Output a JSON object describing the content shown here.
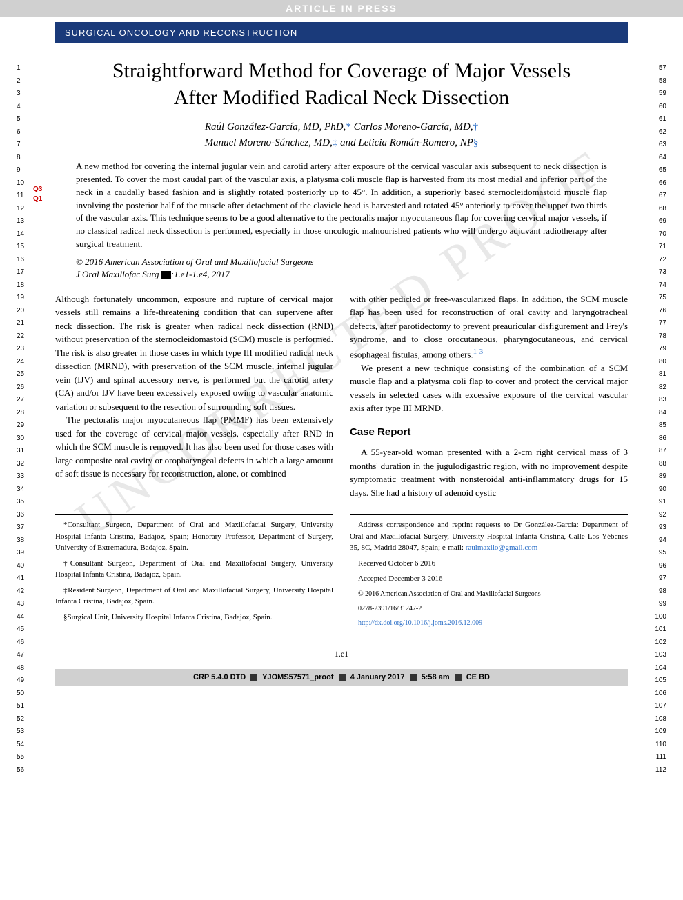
{
  "banners": {
    "top": "ARTICLE IN PRESS",
    "section": "SURGICAL ONCOLOGY AND RECONSTRUCTION"
  },
  "watermark": "UNCORRECTED PROOF",
  "line_numbers": {
    "left_start": 1,
    "left_end": 56,
    "right_start": 57,
    "right_end": 112
  },
  "q_markers": [
    "Q3",
    "Q1"
  ],
  "title": "Straightforward Method for Coverage of Major Vessels After Modified Radical Neck Dissection",
  "authors": {
    "line1_a": "Raúl González-García, MD, PhD,",
    "line1_sym_a": "*",
    "line1_b": " Carlos Moreno-García, MD,",
    "line1_sym_b": "†",
    "line2_a": "Manuel Moreno-Sánchez, MD,",
    "line2_sym_a": "‡",
    "line2_b": " and Leticia Román-Romero, NP",
    "line2_sym_b": "§"
  },
  "abstract": "A new method for covering the internal jugular vein and carotid artery after exposure of the cervical vascular axis subsequent to neck dissection is presented. To cover the most caudal part of the vascular axis, a platysma coli muscle flap is harvested from its most medial and inferior part of the neck in a caudally based fashion and is slightly rotated posteriorly up to 45°. In addition, a superiorly based sternocleidomastoid muscle flap involving the posterior half of the muscle after detachment of the clavicle head is harvested and rotated 45° anteriorly to cover the upper two thirds of the vascular axis. This technique seems to be a good alternative to the pectoralis major myocutaneous flap for covering cervical major vessels, if no classical radical neck dissection is performed, especially in those oncologic malnourished patients who will undergo adjuvant radiotherapy after surgical treatment.",
  "copyright": "© 2016 American Association of Oral and Maxillofacial Surgeons",
  "citation_prefix": "J Oral Maxillofac Surg ",
  "citation_suffix": ":1.e1-1.e4, 2017",
  "body": {
    "left": {
      "p1": "Although fortunately uncommon, exposure and rupture of cervical major vessels still remains a life-threatening condition that can supervene after neck dissection. The risk is greater when radical neck dissection (RND) without preservation of the sternocleidomastoid (SCM) muscle is performed. The risk is also greater in those cases in which type III modified radical neck dissection (MRND), with preservation of the SCM muscle, internal jugular vein (IJV) and spinal accessory nerve, is performed but the carotid artery (CA) and/or IJV have been excessively exposed owing to vascular anatomic variation or subsequent to the resection of surrounding soft tissues.",
      "p2": "The pectoralis major myocutaneous flap (PMMF) has been extensively used for the coverage of cervical major vessels, especially after RND in which the SCM muscle is removed. It has also been used for those cases with large composite oral cavity or oropharyngeal defects in which a large amount of soft tissue is necessary for reconstruction, alone, or combined"
    },
    "right": {
      "p1a": "with other pedicled or free-vascularized flaps. In addition, the SCM muscle flap has been used for reconstruction of oral cavity and laryngotracheal defects, after parotidectomy to prevent preauricular disfigurement and Frey's syndrome, and to close orocutaneous, pharyngocutaneous, and cervical esophageal fistulas, among others.",
      "ref1": "1-3",
      "p2": "We present a new technique consisting of the combination of a SCM muscle flap and a platysma coli flap to cover and protect the cervical major vessels in selected cases with excessive exposure of the cervical vascular axis after type III MRND.",
      "heading": "Case Report",
      "p3": "A 55-year-old woman presented with a 2-cm right cervical mass of 3 months' duration in the jugulodigastric region, with no improvement despite symptomatic treatment with nonsteroidal anti-inflammatory drugs for 15 days. She had a history of adenoid cystic"
    }
  },
  "footnotes": {
    "left": {
      "f1": "*Consultant Surgeon, Department of Oral and Maxillofacial Surgery, University Hospital Infanta Cristina, Badajoz, Spain; Honorary Professor, Department of Surgery, University of Extremadura, Badajoz, Spain.",
      "f2": "†Consultant Surgeon, Department of Oral and Maxillofacial Surgery, University Hospital Infanta Cristina, Badajoz, Spain.",
      "f3": "‡Resident Surgeon, Department of Oral and Maxillofacial Surgery, University Hospital Infanta Cristina, Badajoz, Spain.",
      "f4": "§Surgical Unit, University Hospital Infanta Cristina, Badajoz, Spain."
    },
    "right": {
      "f1a": "Address correspondence and reprint requests to Dr González-García: Department of Oral and Maxillofacial Surgery, University Hospital Infanta Cristina, Calle Los Yébenes 35, 8C, Madrid 28047, Spain; e-mail: ",
      "email": "raulmaxilo@gmail.com",
      "f2": "Received October 6 2016",
      "f3": "Accepted December 3 2016",
      "f4": "© 2016 American Association of Oral and Maxillofacial Surgeons",
      "f5": "0278-2391/16/31247-2",
      "doi": "http://dx.doi.org/10.1016/j.joms.2016.12.009"
    }
  },
  "page_num": "1.e1",
  "footer": {
    "a": "CRP 5.4.0 DTD",
    "b": "YJOMS57571_proof",
    "c": "4 January 2017",
    "d": "5:58 am",
    "e": "CE BD"
  },
  "colors": {
    "banner_blue": "#1a3a7a",
    "link_blue": "#2a6ec7",
    "gray_bar": "#d0d0d0",
    "q_red": "#cc0000",
    "watermark": "#e8e8e8"
  }
}
